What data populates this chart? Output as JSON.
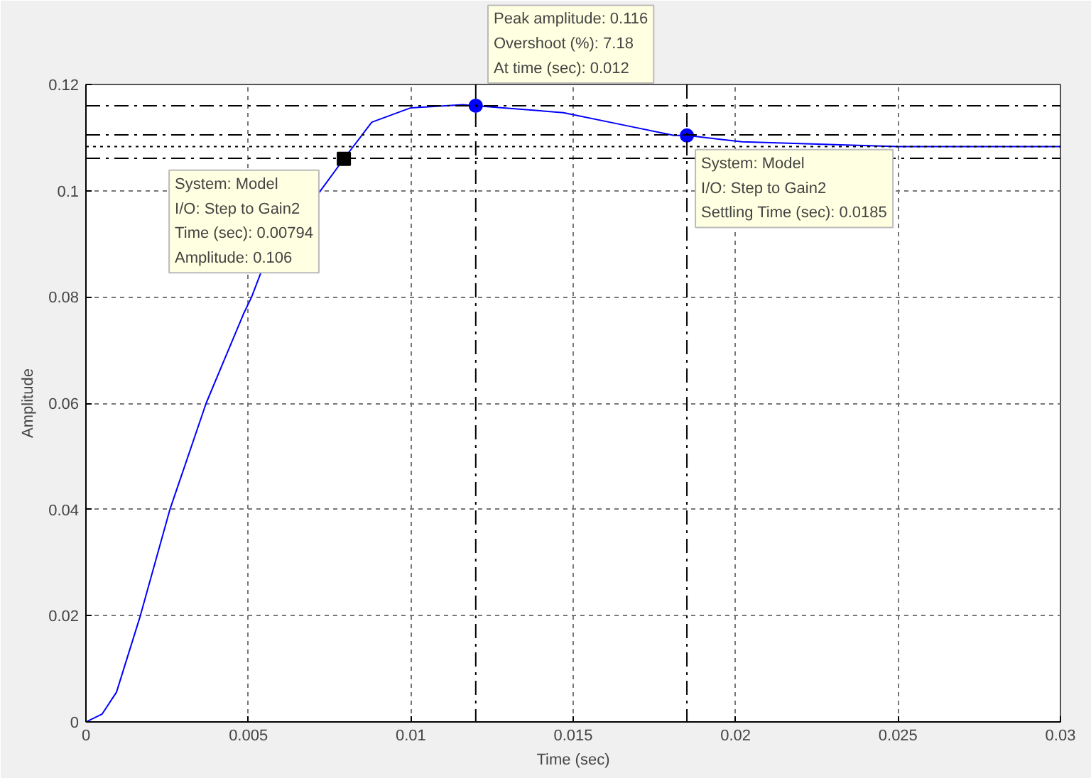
{
  "chart_data": {
    "type": "line",
    "xlabel": "Time (sec)",
    "ylabel": "Amplitude",
    "xlim": [
      0,
      0.03
    ],
    "ylim": [
      0,
      0.12
    ],
    "xticks": [
      0,
      0.005,
      0.01,
      0.015,
      0.02,
      0.025,
      0.03
    ],
    "yticks": [
      0,
      0.02,
      0.04,
      0.06,
      0.08,
      0.1,
      0.12
    ],
    "grid": true,
    "series": [
      {
        "color": "#0000ff",
        "marker": "none",
        "x": [
          0,
          0.0005,
          0.00094,
          0.00167,
          0.00258,
          0.0037,
          0.00485,
          0.0051,
          0.0054,
          0.00794,
          0.0088,
          0.01,
          0.0116,
          0.012,
          0.0147,
          0.0166,
          0.0181,
          0.0185,
          0.0202,
          0.025,
          0.03
        ],
        "values": [
          0,
          0.0015,
          0.0056,
          0.0199,
          0.0399,
          0.06,
          0.0768,
          0.08,
          0.0848,
          0.106,
          0.1129,
          0.1156,
          0.1162,
          0.116,
          0.1147,
          0.1123,
          0.1104,
          0.1104,
          0.1092,
          0.1083,
          0.1083
        ]
      },
      {
        "type": "scatter",
        "color": "#000000",
        "marker": "square",
        "x": [
          0.00794
        ],
        "values": [
          0.106
        ]
      },
      {
        "type": "scatter",
        "color": "#0000ff",
        "marker": "circle",
        "x": [
          0.012,
          0.0185
        ],
        "values": [
          0.116,
          0.1104
        ]
      }
    ],
    "ref_lines": [
      {
        "axis": "y",
        "value": 0.116,
        "line_style": "dashdot",
        "color": "#000000"
      },
      {
        "axis": "y",
        "value": 0.1105,
        "line_style": "dashdot",
        "color": "#000000"
      },
      {
        "axis": "y",
        "value": 0.1083,
        "line_style": "dotted",
        "color": "#000000"
      },
      {
        "axis": "y",
        "value": 0.1061,
        "line_style": "dashdot",
        "color": "#000000"
      },
      {
        "axis": "x",
        "value": 0.012,
        "line_style": "dashdot",
        "color": "#000000"
      },
      {
        "axis": "x",
        "value": 0.0185,
        "line_style": "dashdot",
        "color": "#000000"
      }
    ],
    "annotations": [
      {
        "text": "System: Model\nI/O: Step to Gain2\nTime (sec): 0.00794\nAmplitude: 0.106",
        "x": 0.00794,
        "y": 0.106
      },
      "Peak amplitude: 0.116\nOvershoot (%): 7.18\nAt time (sec): 0.012",
      {
        "text": "System: Model\nI/O: Step to Gain2\nSettling Time (sec): 0.0185",
        "x": 0.0185,
        "y": 0.1104
      }
    ]
  }
}
